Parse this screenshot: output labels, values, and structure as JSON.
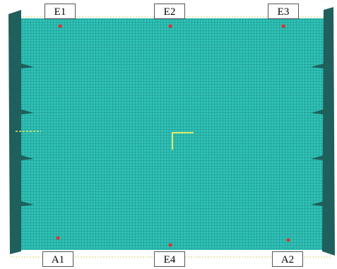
{
  "labels": [
    "E1",
    "E2",
    "E3",
    "A1",
    "E4",
    "A2"
  ]
}
